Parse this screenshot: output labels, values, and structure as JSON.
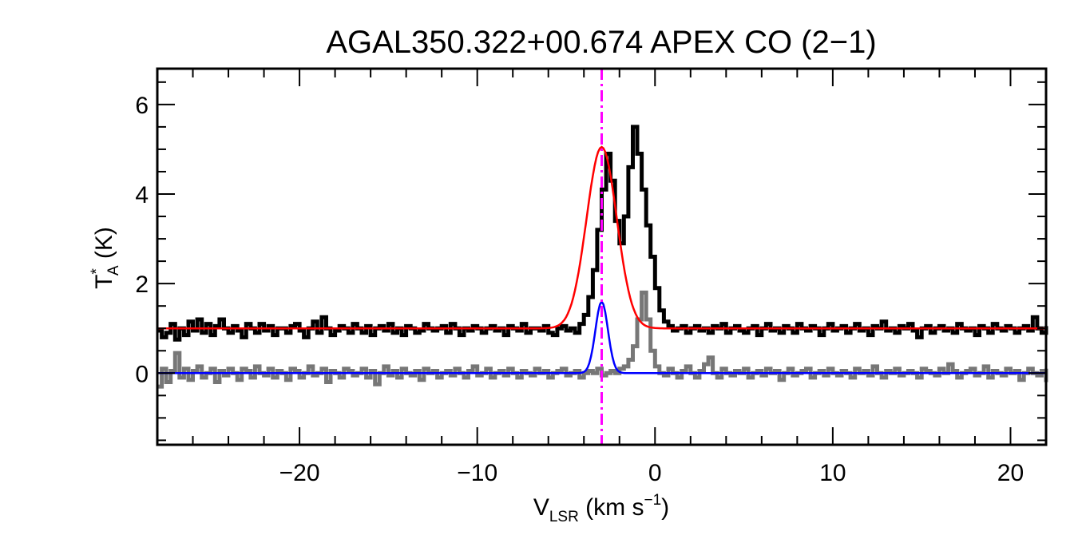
{
  "chart_data": {
    "type": "line",
    "title": "AGAL350.322+00.674  APEX CO (2−1)",
    "xlabel": {
      "main": "V",
      "sub": "LSR",
      "rest": " (km s",
      "sup": "−1",
      "end": ")"
    },
    "ylabel": {
      "main": "T",
      "sup": "*",
      "sub": "A",
      "rest": " (K)"
    },
    "xlim": [
      -28,
      22
    ],
    "ylim": [
      -1.6,
      6.8
    ],
    "xticks": [
      -20,
      -10,
      0,
      10,
      20
    ],
    "xtick_labels": [
      "−20",
      "−10",
      "0",
      "10",
      "20"
    ],
    "yticks": [
      0,
      2,
      4,
      6
    ],
    "ytick_labels": [
      "0",
      "2",
      "4",
      "6"
    ],
    "vline": {
      "x": -3.0,
      "color": "#ff00ff",
      "style": "dash-dot"
    },
    "grid": false,
    "series": [
      {
        "role": "observed-spectrum-black",
        "style": "histogram",
        "color": "#000000",
        "x_start": -28.0,
        "dx": 0.25,
        "values": [
          0.95,
          0.8,
          0.9,
          1.1,
          0.75,
          1.0,
          0.85,
          1.15,
          0.95,
          1.2,
          0.9,
          1.1,
          0.85,
          1.05,
          1.2,
          1.0,
          0.9,
          1.05,
          0.95,
          0.8,
          1.1,
          1.0,
          0.9,
          1.1,
          0.95,
          1.05,
          0.85,
          1.0,
          1.0,
          0.9,
          1.05,
          1.1,
          0.95,
          0.8,
          1.0,
          1.15,
          0.9,
          1.25,
          1.0,
          0.85,
          0.95,
          1.05,
          1.0,
          0.9,
          1.1,
          1.0,
          0.9,
          1.05,
          0.85,
          1.0,
          1.05,
          0.95,
          1.1,
          0.9,
          1.0,
          0.85,
          1.05,
          1.0,
          0.9,
          0.95,
          1.1,
          1.0,
          0.95,
          1.0,
          1.05,
          0.9,
          1.1,
          1.0,
          0.85,
          1.0,
          0.95,
          1.05,
          1.0,
          0.9,
          1.0,
          1.05,
          0.95,
          1.0,
          0.85,
          1.05,
          1.0,
          0.95,
          1.1,
          0.9,
          1.0,
          1.0,
          0.95,
          1.05,
          0.9,
          0.85,
          1.0,
          1.05,
          0.95,
          1.0,
          0.9,
          1.1,
          1.3,
          1.7,
          2.3,
          3.2,
          4.1,
          4.9,
          4.3,
          3.4,
          2.9,
          3.5,
          4.6,
          5.5,
          4.9,
          4.1,
          3.3,
          2.6,
          1.9,
          1.4,
          1.15,
          1.05,
          0.95,
          1.0,
          1.05,
          0.9,
          1.0,
          1.05,
          0.95,
          1.0,
          0.9,
          1.05,
          1.0,
          1.1,
          0.9,
          1.0,
          1.05,
          0.95,
          0.9,
          1.0,
          1.05,
          0.85,
          1.0,
          1.1,
          0.95,
          1.0,
          0.9,
          1.05,
          1.0,
          0.9,
          1.1,
          1.0,
          0.95,
          1.05,
          1.0,
          0.85,
          1.0,
          1.1,
          0.95,
          1.0,
          1.05,
          0.9,
          1.0,
          1.1,
          0.95,
          1.0,
          0.85,
          1.05,
          1.0,
          1.15,
          0.95,
          1.0,
          0.9,
          1.05,
          1.0,
          1.1,
          0.95,
          0.8,
          1.0,
          1.05,
          0.9,
          1.0,
          1.05,
          0.95,
          1.0,
          0.9,
          1.1,
          1.0,
          0.95,
          1.0,
          0.85,
          1.05,
          1.0,
          0.9,
          1.1,
          1.0,
          0.95,
          1.05,
          1.0,
          0.9,
          1.0,
          1.05,
          0.95,
          1.25,
          1.0,
          0.9,
          1.05,
          1.0,
          0.95,
          1.0,
          0.9,
          1.0
        ]
      },
      {
        "role": "observed-spectrum-gray",
        "style": "histogram",
        "color": "#777777",
        "x_start": -28.0,
        "dx": 0.25,
        "values": [
          -0.3,
          0.1,
          -0.2,
          0.05,
          0.45,
          -0.1,
          0.1,
          -0.15,
          0.05,
          0.15,
          -0.1,
          0.0,
          0.1,
          -0.2,
          0.05,
          -0.05,
          0.1,
          0.0,
          -0.15,
          0.1,
          0.05,
          -0.1,
          0.15,
          0.0,
          -0.05,
          0.1,
          -0.1,
          0.05,
          0.0,
          -0.15,
          0.1,
          0.05,
          -0.1,
          0.0,
          0.15,
          -0.05,
          0.0,
          0.1,
          -0.2,
          0.05,
          0.0,
          -0.1,
          0.1,
          0.05,
          -0.05,
          0.0,
          0.1,
          -0.1,
          0.05,
          -0.25,
          0.0,
          0.15,
          -0.05,
          0.05,
          -0.1,
          0.1,
          0.0,
          -0.05,
          0.05,
          -0.15,
          0.1,
          0.0,
          0.05,
          -0.1,
          0.0,
          0.05,
          -0.05,
          0.1,
          0.0,
          -0.1,
          0.05,
          0.15,
          -0.05,
          0.0,
          0.1,
          -0.1,
          0.0,
          0.05,
          -0.05,
          0.1,
          0.0,
          -0.1,
          0.05,
          0.0,
          -0.05,
          0.1,
          0.0,
          0.05,
          -0.1,
          0.0,
          0.05,
          0.1,
          -0.05,
          0.0,
          0.05,
          -0.1,
          0.0,
          0.05,
          0.0,
          0.1,
          -0.05,
          0.0,
          0.05,
          0.0,
          0.1,
          0.15,
          0.3,
          0.6,
          1.2,
          1.8,
          1.2,
          0.5,
          0.15,
          0.0,
          -0.05,
          0.1,
          0.0,
          -0.1,
          0.05,
          0.15,
          0.0,
          -0.1,
          0.05,
          0.2,
          0.35,
          0.0,
          -0.1,
          0.1,
          0.0,
          -0.05,
          0.05,
          0.0,
          0.1,
          -0.1,
          0.0,
          0.05,
          -0.05,
          0.1,
          0.0,
          0.05,
          -0.15,
          0.0,
          0.1,
          -0.05,
          0.0,
          0.05,
          0.1,
          -0.1,
          0.0,
          0.05,
          -0.05,
          0.1,
          0.0,
          -0.05,
          0.05,
          0.0,
          -0.1,
          0.1,
          0.0,
          0.05,
          -0.05,
          0.15,
          0.0,
          -0.1,
          0.05,
          0.0,
          0.1,
          -0.05,
          0.0,
          0.05,
          0.0,
          -0.1,
          0.1,
          0.05,
          0.0,
          -0.05,
          0.1,
          0.0,
          0.2,
          0.05,
          -0.1,
          0.0,
          0.05,
          0.1,
          -0.05,
          0.0,
          0.15,
          -0.1,
          0.05,
          0.0,
          -0.05,
          0.1,
          0.0,
          0.05,
          -0.15,
          0.0,
          0.1,
          0.0,
          -0.05,
          0.05,
          0.0,
          -0.2,
          0.1,
          -0.1
        ]
      },
      {
        "role": "gaussian-fit-red",
        "style": "gaussian",
        "color": "#ff0000",
        "baseline": 1.0,
        "amplitude": 4.05,
        "center": -3.0,
        "sigma": 0.85
      },
      {
        "role": "gaussian-fit-blue",
        "style": "gaussian",
        "color": "#0000ff",
        "baseline": 0.0,
        "amplitude": 1.6,
        "center": -3.0,
        "sigma": 0.35
      }
    ]
  }
}
